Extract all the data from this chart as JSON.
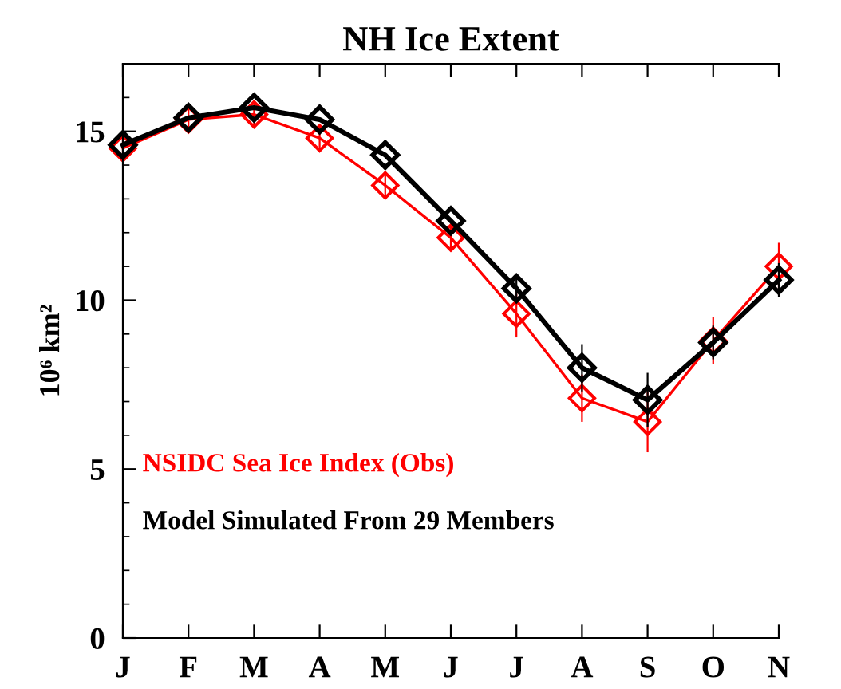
{
  "chart_data": {
    "type": "line",
    "title": "NH Ice Extent",
    "ylabel": "10⁶ km²",
    "categories": [
      "J",
      "F",
      "M",
      "A",
      "M",
      "J",
      "J",
      "A",
      "S",
      "O",
      "N"
    ],
    "series": [
      {
        "name": "NSIDC Sea Ice Index (Obs)",
        "color": "#ff0000",
        "values": [
          14.5,
          15.35,
          15.5,
          14.8,
          13.4,
          11.85,
          9.6,
          7.1,
          6.4,
          8.8,
          11.0
        ],
        "errors": [
          0.4,
          0.4,
          0.4,
          0.4,
          0.4,
          0.4,
          0.7,
          0.7,
          0.9,
          0.7,
          0.7
        ]
      },
      {
        "name": "Model Simulated From 29 Members",
        "color": "#000000",
        "values": [
          14.6,
          15.4,
          15.7,
          15.35,
          14.3,
          12.35,
          10.35,
          8.0,
          7.05,
          8.75,
          10.6
        ],
        "errors": [
          null,
          null,
          null,
          null,
          null,
          null,
          0.4,
          0.7,
          0.8,
          0.5,
          0.5
        ]
      }
    ],
    "ylim": [
      0,
      17
    ],
    "yticks": [
      0,
      5,
      10,
      15
    ],
    "marker": "diamond",
    "line_style": "solid",
    "grid": false,
    "legend": false
  }
}
